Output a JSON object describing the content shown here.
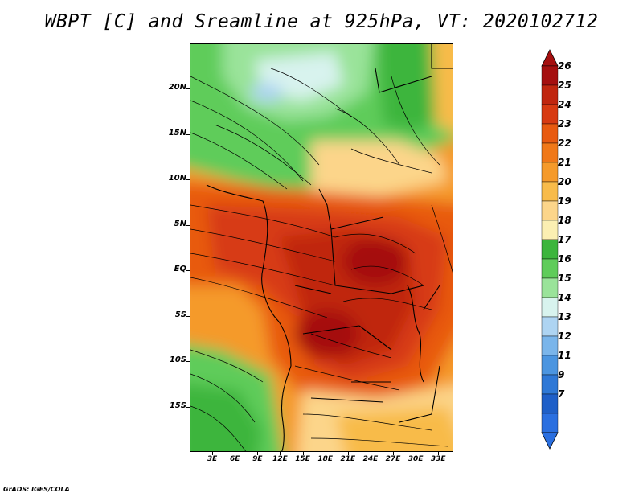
{
  "title": "WBPT [C] and Sreamline at 925hPa, VT: 2020102712",
  "credit": "GrADS: IGES/COLA",
  "map": {
    "lat_labels": [
      "20N",
      "15N",
      "10N",
      "5N",
      "EQ",
      "5S",
      "10S",
      "15S"
    ],
    "lon_labels": [
      "3E",
      "6E",
      "9E",
      "12E",
      "15E",
      "18E",
      "21E",
      "24E",
      "27E",
      "30E",
      "33E"
    ],
    "lat_values": [
      20,
      15,
      10,
      5,
      0,
      -5,
      -10,
      -15
    ],
    "lon_values": [
      3,
      6,
      9,
      12,
      15,
      18,
      21,
      24,
      27,
      30,
      33
    ],
    "lat_range": [
      -20,
      25
    ],
    "lon_range": [
      0,
      35
    ],
    "field": "wet-bulb potential temperature",
    "streamlines": "925hPa wind"
  },
  "colorbar": {
    "labels": [
      "26",
      "25",
      "24",
      "23",
      "22",
      "21",
      "20",
      "19",
      "18",
      "17",
      "16",
      "15",
      "14",
      "13",
      "12",
      "11",
      "9",
      "7"
    ],
    "colors": [
      "#a50f0f",
      "#c0260f",
      "#d73a12",
      "#e85a10",
      "#f07818",
      "#f59a2a",
      "#f8bb4a",
      "#fcd58a",
      "#fbefb2",
      "#3cb53c",
      "#5fcc5a",
      "#9ae39a",
      "#d8f3ee",
      "#aed4f2",
      "#7ab5ea",
      "#4b95e0",
      "#2e78d6",
      "#1e5fc8",
      "#2a6fe0"
    ],
    "top_arrow_color": "#a50f0f",
    "bottom_arrow_color": "#2a6fe0"
  }
}
